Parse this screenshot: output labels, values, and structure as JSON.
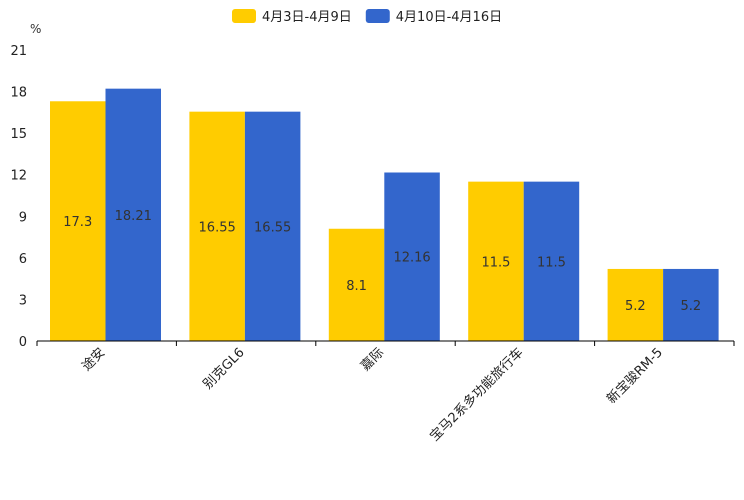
{
  "chart_data": {
    "type": "bar",
    "title": "",
    "xlabel": "",
    "ylabel": "%",
    "ylim": [
      0,
      21
    ],
    "yticks": [
      0,
      3,
      6,
      9,
      12,
      15,
      18,
      21
    ],
    "grid": false,
    "legend_position": "top-center",
    "categories": [
      "途安",
      "别克GL6",
      "嘉际",
      "宝马2系多功能旅行车",
      "新宝骏RM-5"
    ],
    "series": [
      {
        "name": "4月3日-4月9日",
        "color": "#FFCC00",
        "values": [
          17.3,
          16.55,
          8.1,
          11.5,
          5.2
        ],
        "labels": [
          "17.3",
          "16.55",
          "8.1",
          "11.5",
          "5.2"
        ]
      },
      {
        "name": "4月10日-4月16日",
        "color": "#3366CC",
        "values": [
          18.21,
          16.55,
          12.16,
          11.5,
          5.2
        ],
        "labels": [
          "18.21",
          "16.55",
          "12.16",
          "11.5",
          "5.2"
        ]
      }
    ]
  }
}
